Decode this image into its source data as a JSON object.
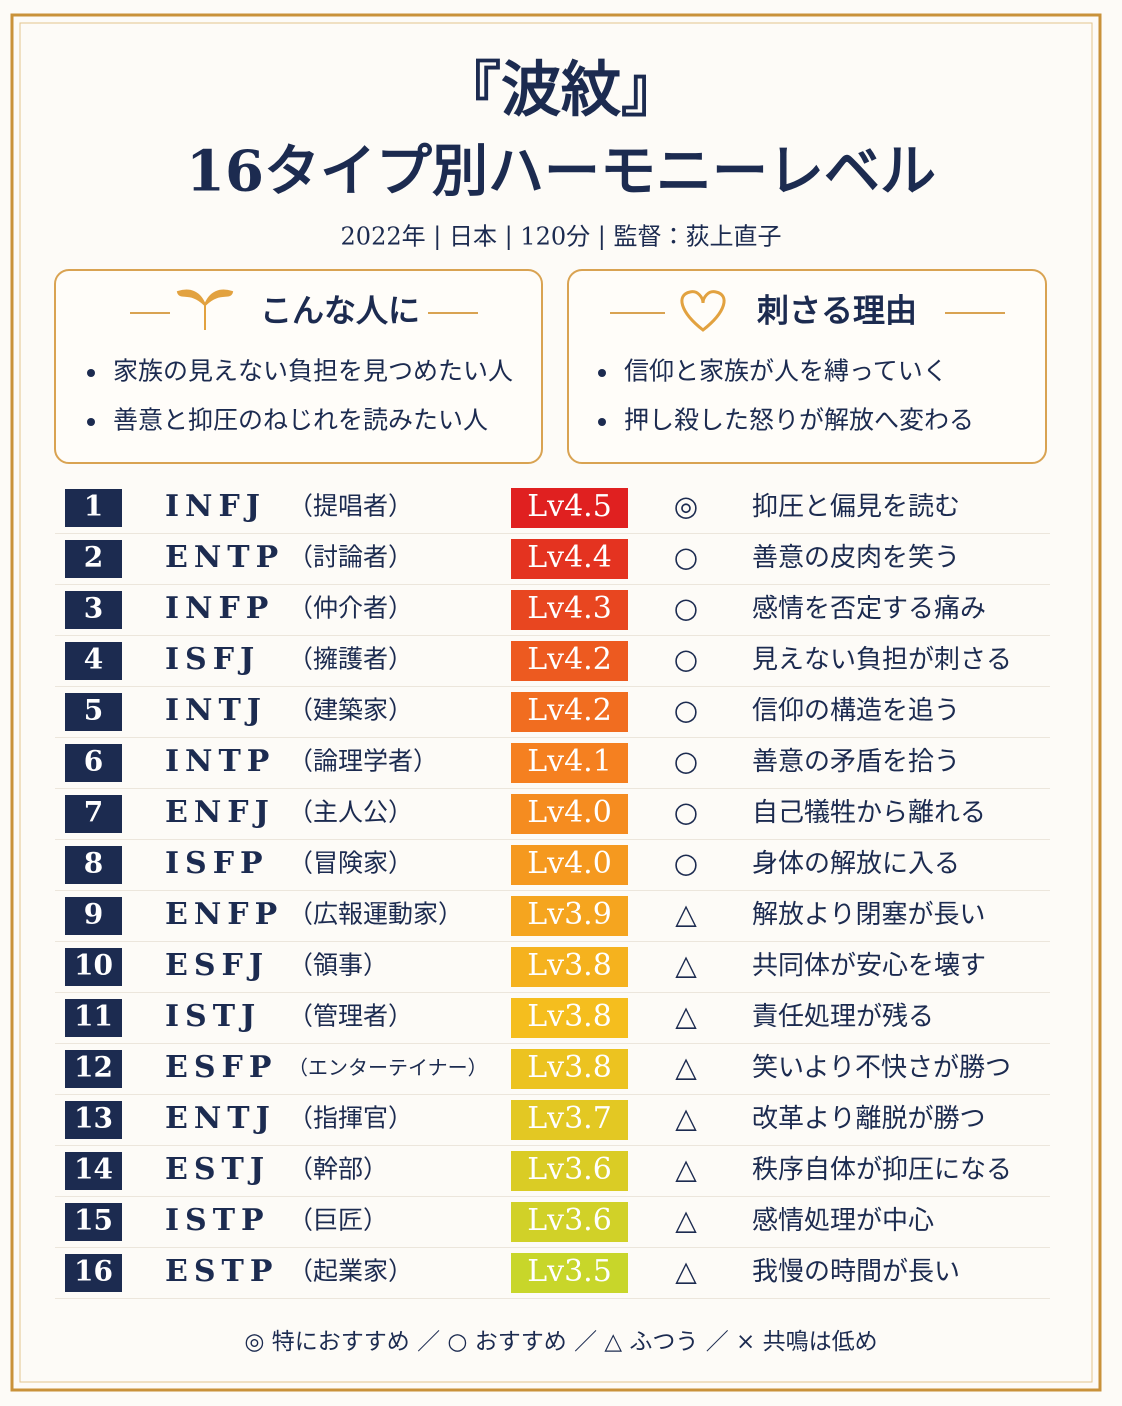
{
  "header": {
    "title": "『波紋』",
    "subtitle": "16タイプ別ハーモニーレベル",
    "meta": "2022年 | 日本 | 120分 | 監督：荻上直子"
  },
  "boxes": [
    {
      "heading": "こんな人に",
      "items": [
        "家族の見えない負担を見つめたい人",
        "善意と抑圧のねじれを読みたい人"
      ]
    },
    {
      "heading": "刺さる理由",
      "items": [
        "信仰と家族が人を縛っていく",
        "押し殺した怒りが解放へ変わる"
      ]
    }
  ],
  "table": {
    "rows": [
      [
        1,
        "INFJ",
        "（提唱者）",
        "Lv4.5",
        "◎",
        "抑圧と偏見を読む"
      ],
      [
        2,
        "ENTP",
        "（討論者）",
        "Lv4.4",
        "○",
        "善意の皮肉を笑う"
      ],
      [
        3,
        "INFP",
        "（仲介者）",
        "Lv4.3",
        "○",
        "感情を否定する痛み"
      ],
      [
        4,
        "ISFJ",
        "（擁護者）",
        "Lv4.2",
        "○",
        "見えない負担が刺さる"
      ],
      [
        5,
        "INTJ",
        "（建築家）",
        "Lv4.2",
        "○",
        "信仰の構造を追う"
      ],
      [
        6,
        "INTP",
        "（論理学者）",
        "Lv4.1",
        "○",
        "善意の矛盾を拾う"
      ],
      [
        7,
        "ENFJ",
        "（主人公）",
        "Lv4.0",
        "○",
        "自己犠牲から離れる"
      ],
      [
        8,
        "ISFP",
        "（冒険家）",
        "Lv4.0",
        "○",
        "身体の解放に入る"
      ],
      [
        9,
        "ENFP",
        "（広報運動家）",
        "Lv3.9",
        "△",
        "解放より閉塞が長い"
      ],
      [
        10,
        "ESFJ",
        "（領事）",
        "Lv3.8",
        "△",
        "共同体が安心を壊す"
      ],
      [
        11,
        "ISTJ",
        "（管理者）",
        "Lv3.8",
        "△",
        "責任処理が残る"
      ],
      [
        12,
        "ESFP",
        "（エンターテイナー）",
        "Lv3.8",
        "△",
        "笑いより不快さが勝つ"
      ],
      [
        13,
        "ENTJ",
        "（指揮官）",
        "Lv3.7",
        "△",
        "改革より離脱が勝つ"
      ],
      [
        14,
        "ESTJ",
        "（幹部）",
        "Lv3.6",
        "△",
        "秩序自体が抑圧になる"
      ],
      [
        15,
        "ISTP",
        "（巨匠）",
        "Lv3.6",
        "△",
        "感情処理が中心"
      ],
      [
        16,
        "ESTP",
        "（起業家）",
        "Lv3.5",
        "△",
        "我慢の時間が長い"
      ]
    ]
  },
  "legend": "◎ 特におすすめ ／ ○ おすすめ ／ △ ふつう ／ × 共鳴は低め"
}
